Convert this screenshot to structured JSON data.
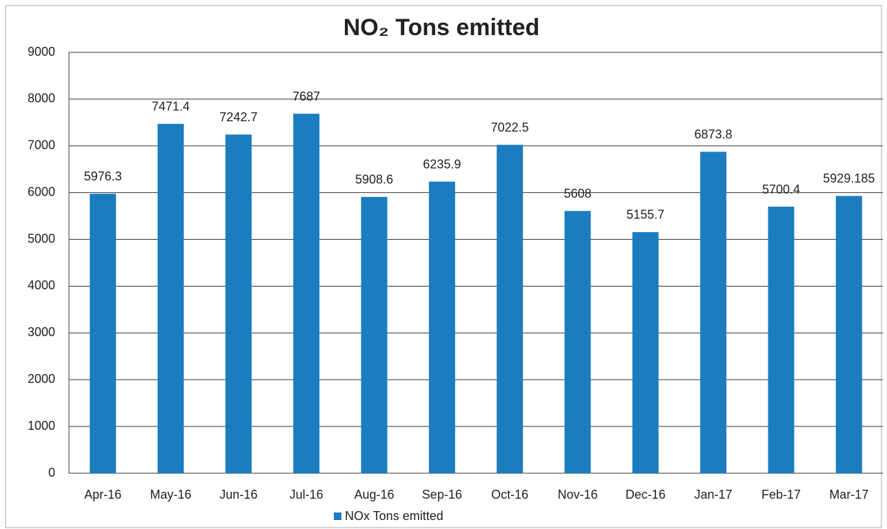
{
  "chart_data": {
    "type": "bar",
    "title": "NO₂ Tons emitted",
    "categories": [
      "Apr-16",
      "May-16",
      "Jun-16",
      "Jul-16",
      "Aug-16",
      "Sep-16",
      "Oct-16",
      "Nov-16",
      "Dec-16",
      "Jan-17",
      "Feb-17",
      "Mar-17"
    ],
    "series": [
      {
        "name": "NOx Tons emitted",
        "color": "#1b7dc0",
        "values": [
          5976.3,
          7471.4,
          7242.7,
          7687,
          5908.6,
          6235.9,
          7022.5,
          5608,
          5155.7,
          6873.8,
          5700.4,
          5929.185
        ]
      }
    ],
    "ylim": [
      0,
      9000
    ],
    "yticks": [
      0,
      1000,
      2000,
      3000,
      4000,
      5000,
      6000,
      7000,
      8000,
      9000
    ],
    "grid": true,
    "legend": "bottom"
  }
}
